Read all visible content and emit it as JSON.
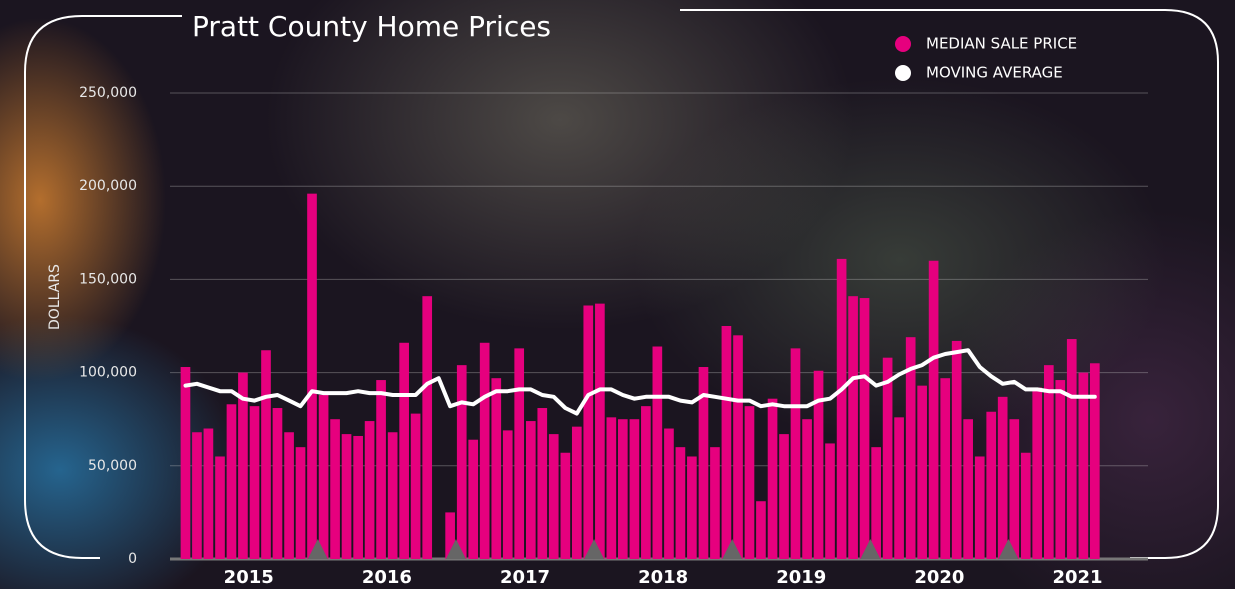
{
  "chart_data": {
    "type": "bar",
    "title": "Pratt County Home Prices",
    "y_label": "DOLLARS",
    "x": [
      2015.042,
      2015.125,
      2015.208,
      2015.292,
      2015.375,
      2015.458,
      2015.542,
      2015.625,
      2015.708,
      2015.792,
      2015.875,
      2015.958,
      2016.042,
      2016.125,
      2016.208,
      2016.292,
      2016.375,
      2016.458,
      2016.542,
      2016.625,
      2016.708,
      2016.792,
      2016.875,
      2016.958,
      2017.042,
      2017.125,
      2017.208,
      2017.292,
      2017.375,
      2017.458,
      2017.542,
      2017.625,
      2017.708,
      2017.792,
      2017.875,
      2017.958,
      2018.042,
      2018.125,
      2018.208,
      2018.292,
      2018.375,
      2018.458,
      2018.542,
      2018.625,
      2018.708,
      2018.792,
      2018.875,
      2018.958,
      2019.042,
      2019.125,
      2019.208,
      2019.292,
      2019.375,
      2019.458,
      2019.542,
      2019.625,
      2019.708,
      2019.792,
      2019.875,
      2019.958,
      2020.042,
      2020.125,
      2020.208,
      2020.292,
      2020.375,
      2020.458,
      2020.542,
      2020.625,
      2020.708,
      2020.792,
      2020.875,
      2020.958,
      2021.042,
      2021.125,
      2021.208,
      2021.292,
      2021.375,
      2021.458,
      2021.542,
      2021.625
    ],
    "series": [
      {
        "name": "MEDIAN SALE PRICE",
        "type": "bar",
        "color": "#e6007e",
        "values": [
          103000,
          68000,
          70000,
          55000,
          83000,
          100000,
          82000,
          112000,
          81000,
          68000,
          60000,
          196000,
          88000,
          75000,
          67000,
          66000,
          74000,
          96000,
          68000,
          116000,
          78000,
          141000,
          null,
          25000,
          104000,
          64000,
          116000,
          97000,
          69000,
          113000,
          74000,
          81000,
          67000,
          57000,
          71000,
          136000,
          137000,
          76000,
          75000,
          75000,
          82000,
          114000,
          70000,
          60000,
          55000,
          103000,
          60000,
          125000,
          120000,
          82000,
          31000,
          86000,
          67000,
          113000,
          75000,
          101000,
          62000,
          161000,
          141000,
          140000,
          60000,
          108000,
          76000,
          119000,
          93000,
          160000,
          97000,
          117000,
          75000,
          55000,
          79000,
          87000,
          75000,
          57000,
          92000,
          104000,
          96000,
          118000,
          100000,
          105000
        ]
      },
      {
        "name": "MOVING AVERAGE",
        "type": "line",
        "color": "#ffffff",
        "values": [
          93000,
          94000,
          92000,
          90000,
          90000,
          86000,
          85000,
          87000,
          88000,
          85000,
          82000,
          90000,
          89000,
          89000,
          89000,
          90000,
          89000,
          89000,
          88000,
          88000,
          88000,
          94000,
          97000,
          82000,
          84000,
          83000,
          87000,
          90000,
          90000,
          91000,
          91000,
          88000,
          87000,
          81000,
          78000,
          88000,
          91000,
          91000,
          88000,
          86000,
          87000,
          87000,
          87000,
          85000,
          84000,
          88000,
          87000,
          86000,
          85000,
          85000,
          82000,
          83000,
          82000,
          82000,
          82000,
          85000,
          86000,
          91000,
          97000,
          98000,
          93000,
          95000,
          99000,
          102000,
          104000,
          108000,
          110000,
          111000,
          112000,
          103000,
          98000,
          94000,
          95000,
          91000,
          91000,
          90000,
          90000,
          87000,
          87000,
          87000
        ]
      }
    ],
    "xlim": [
      2014.93,
      2022.01
    ],
    "xticks": [
      {
        "value": 2015.5,
        "label": "2015"
      },
      {
        "value": 2016.5,
        "label": "2016"
      },
      {
        "value": 2017.5,
        "label": "2017"
      },
      {
        "value": 2018.5,
        "label": "2018"
      },
      {
        "value": 2019.5,
        "label": "2019"
      },
      {
        "value": 2020.5,
        "label": "2020"
      },
      {
        "value": 2021.5,
        "label": "2021"
      }
    ],
    "ylim": [
      0,
      250000
    ],
    "yticks": [
      0,
      {
        "value": 50000,
        "label": "50,000"
      },
      {
        "value": 100000,
        "label": "100,000"
      },
      {
        "value": 150000,
        "label": "150,000"
      },
      {
        "value": 200000,
        "label": "200,000"
      },
      {
        "value": 250000,
        "label": "250,000"
      }
    ],
    "grid": true,
    "legend": "top-right"
  }
}
